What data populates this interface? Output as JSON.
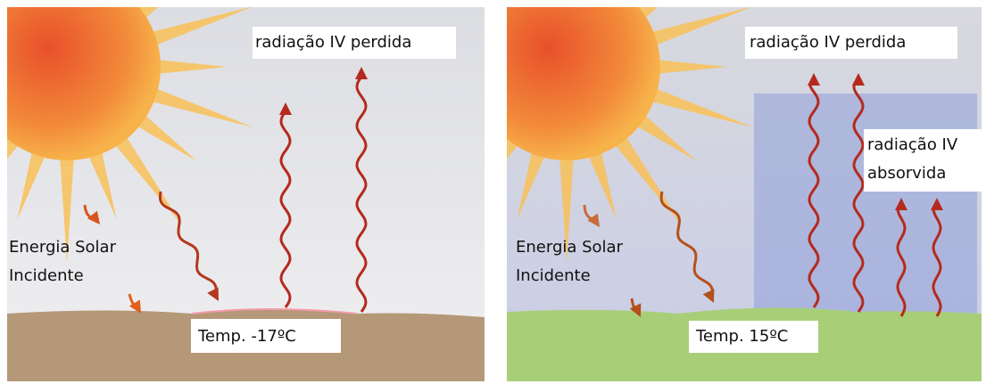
{
  "panels": [
    {
      "ir_lost": "radiação IV perdida",
      "solar_lines": [
        "Energia Solar",
        "Incidente"
      ],
      "temp": "Temp. -17ºC"
    },
    {
      "ir_lost": "radiação IV perdida",
      "ir_absorbed_lines": [
        "radiação IV",
        "absorvida"
      ],
      "solar_lines": [
        "Energia Solar",
        "Incidente"
      ],
      "temp": "Temp. 15ºC"
    }
  ]
}
